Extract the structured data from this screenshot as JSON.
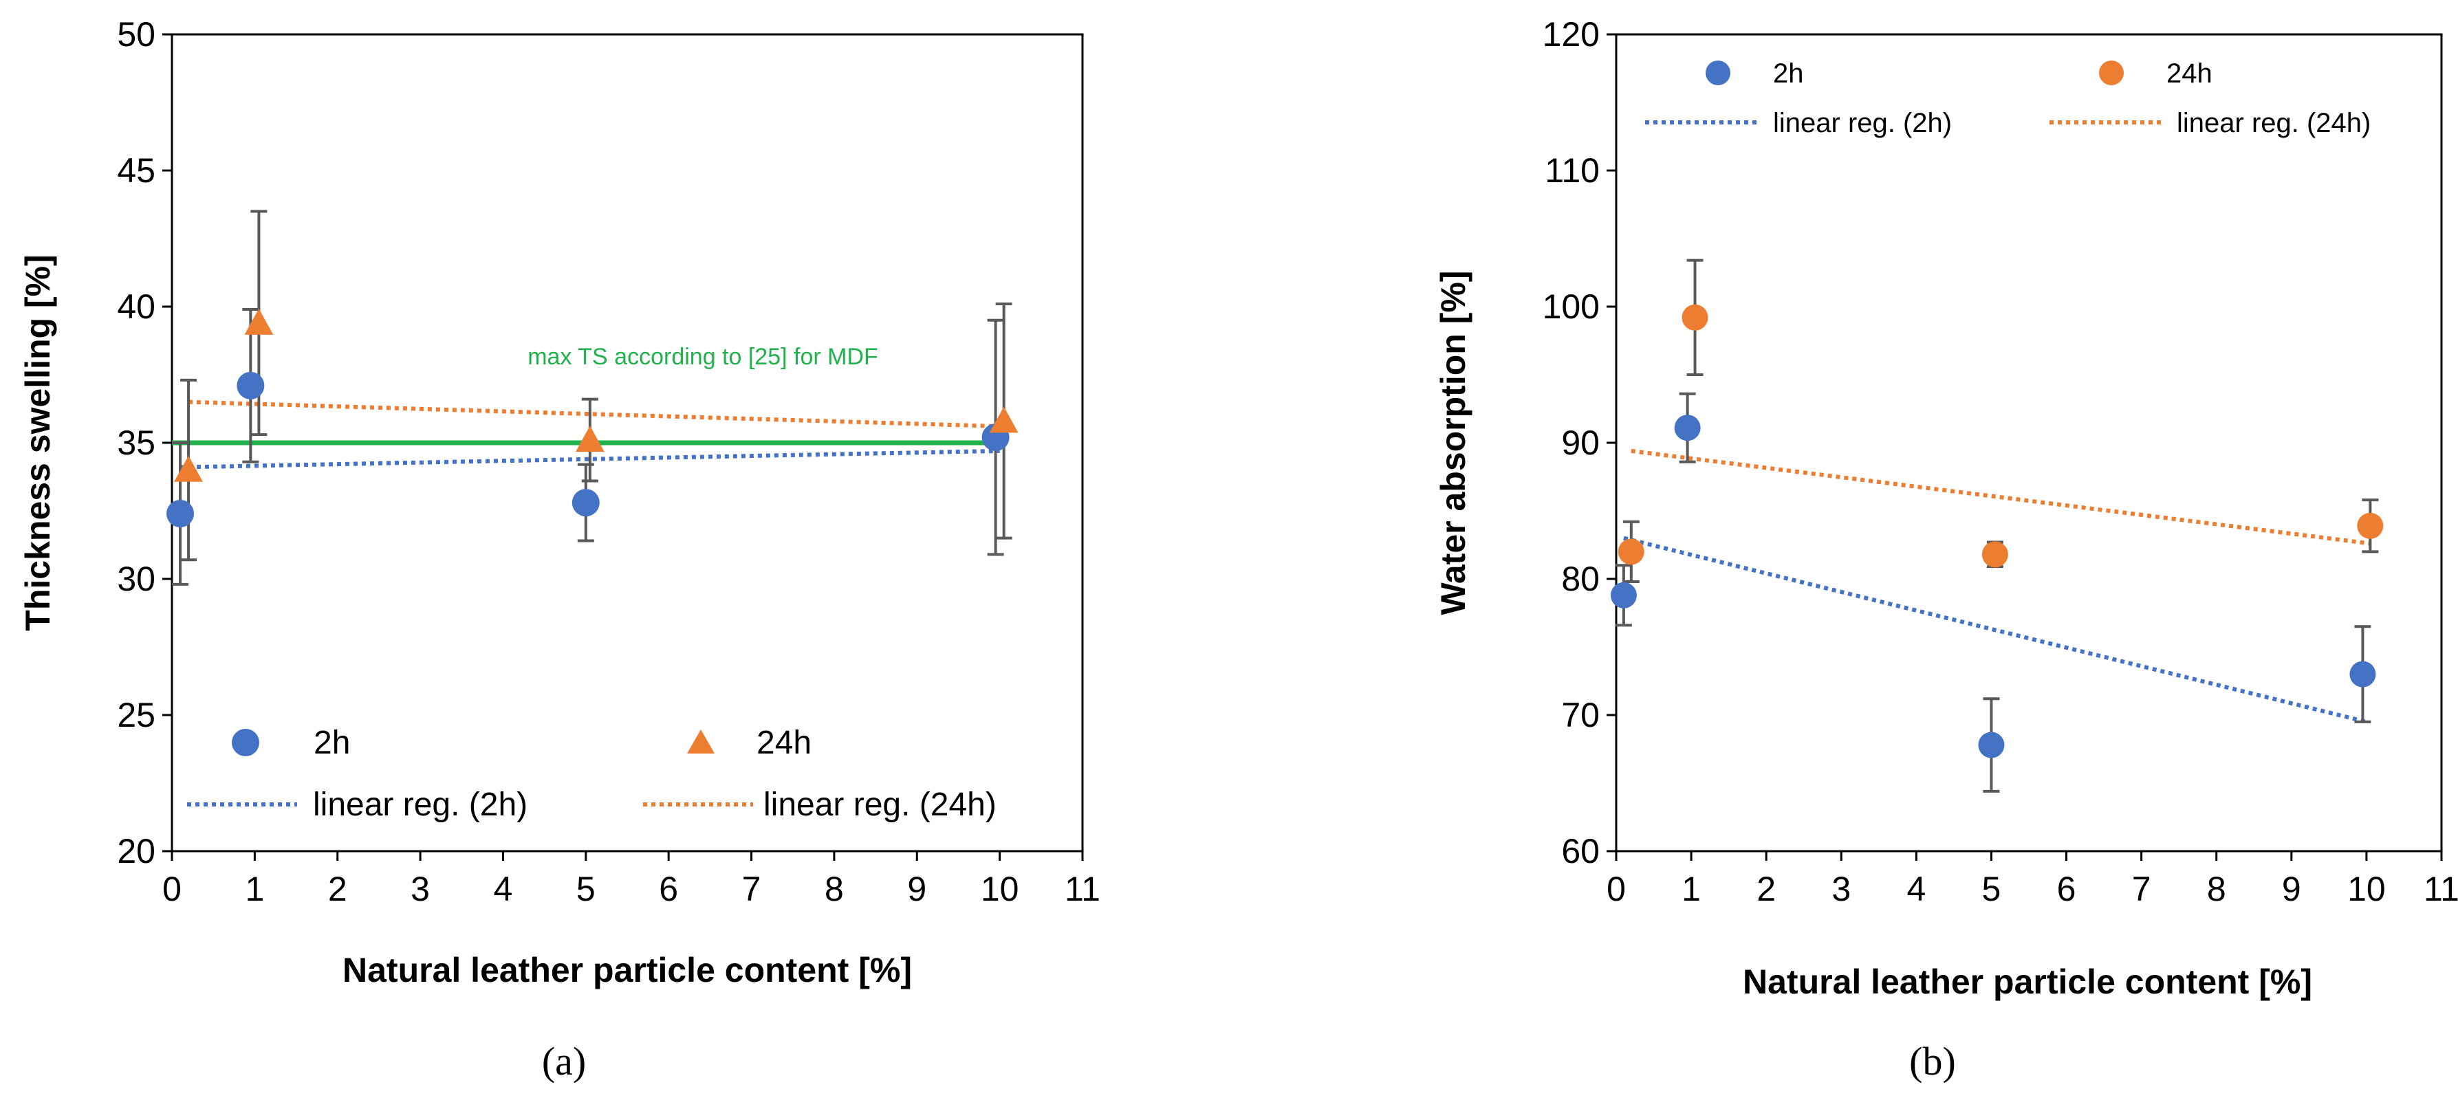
{
  "chart_data": [
    {
      "type": "scatter",
      "panel_label": "(a)",
      "xlabel": "Natural leather particle content [%]",
      "ylabel": "Thickness swelling [%]",
      "xlim": [
        0,
        11
      ],
      "ylim": [
        20,
        50
      ],
      "xticks": [
        "0",
        "1",
        "2",
        "3",
        "4",
        "5",
        "6",
        "7",
        "8",
        "9",
        "10",
        "11"
      ],
      "yticks": [
        "20",
        "25",
        "30",
        "35",
        "40",
        "45",
        "50"
      ],
      "series": [
        {
          "name": "2h",
          "marker": "circle",
          "color": "#4472c4",
          "points": [
            {
              "x": 0.1,
              "y": 32.4,
              "err": 2.6
            },
            {
              "x": 0.95,
              "y": 37.1,
              "err": 2.8
            },
            {
              "x": 5.0,
              "y": 32.8,
              "err": 1.4
            },
            {
              "x": 9.95,
              "y": 35.2,
              "err": 4.3
            }
          ]
        },
        {
          "name": "24h",
          "marker": "triangle",
          "color": "#ed7d31",
          "points": [
            {
              "x": 0.2,
              "y": 34.0,
              "err": 3.3
            },
            {
              "x": 1.05,
              "y": 39.4,
              "err": 4.1
            },
            {
              "x": 5.05,
              "y": 35.1,
              "err": 1.5
            },
            {
              "x": 10.05,
              "y": 35.8,
              "err": 4.3
            }
          ]
        }
      ],
      "regressions": [
        {
          "name": "linear reg. (2h)",
          "color": "#4472c4",
          "x": [
            0.1,
            10
          ],
          "y": [
            34.1,
            34.7
          ]
        },
        {
          "name": "linear reg. (24h)",
          "color": "#ed7d31",
          "x": [
            0.2,
            10.05
          ],
          "y": [
            36.5,
            35.6
          ]
        }
      ],
      "reference_line": {
        "y": 35,
        "x": [
          0,
          10
        ],
        "color": "#22b14c",
        "label": "max TS according to [25] for MDF"
      },
      "legend": {
        "placement": "bottom",
        "entries": [
          "2h",
          "24h",
          "linear reg. (2h)",
          "linear reg. (24h)"
        ]
      }
    },
    {
      "type": "scatter",
      "panel_label": "(b)",
      "xlabel": "Natural leather particle content [%]",
      "ylabel": "Water absorption [%]",
      "xlim": [
        0,
        11
      ],
      "ylim": [
        60,
        120
      ],
      "xticks": [
        "0",
        "1",
        "2",
        "3",
        "4",
        "5",
        "6",
        "7",
        "8",
        "9",
        "10",
        "11"
      ],
      "yticks": [
        "60",
        "70",
        "80",
        "90",
        "100",
        "110",
        "120"
      ],
      "series": [
        {
          "name": "2h",
          "marker": "circle",
          "color": "#4472c4",
          "points": [
            {
              "x": 0.1,
              "y": 78.8,
              "err": 2.2
            },
            {
              "x": 0.95,
              "y": 91.1,
              "err": 2.5
            },
            {
              "x": 5.0,
              "y": 67.8,
              "err": 3.4
            },
            {
              "x": 9.95,
              "y": 73.0,
              "err": 3.5
            }
          ]
        },
        {
          "name": "24h",
          "marker": "circle",
          "color": "#ed7d31",
          "points": [
            {
              "x": 0.2,
              "y": 82.0,
              "err": 2.2
            },
            {
              "x": 1.05,
              "y": 99.2,
              "err": 4.2
            },
            {
              "x": 5.05,
              "y": 81.8,
              "err": 0.9
            },
            {
              "x": 10.05,
              "y": 83.9,
              "err": 1.9
            }
          ]
        }
      ],
      "regressions": [
        {
          "name": "linear reg. (2h)",
          "color": "#4472c4",
          "x": [
            0.1,
            10
          ],
          "y": [
            83.0,
            69.5
          ]
        },
        {
          "name": "linear reg. (24h)",
          "color": "#ed7d31",
          "x": [
            0.2,
            10.05
          ],
          "y": [
            89.4,
            82.6
          ]
        }
      ],
      "legend": {
        "placement": "top",
        "entries": [
          "2h",
          "24h",
          "linear reg. (2h)",
          "linear reg. (24h)"
        ]
      }
    }
  ]
}
